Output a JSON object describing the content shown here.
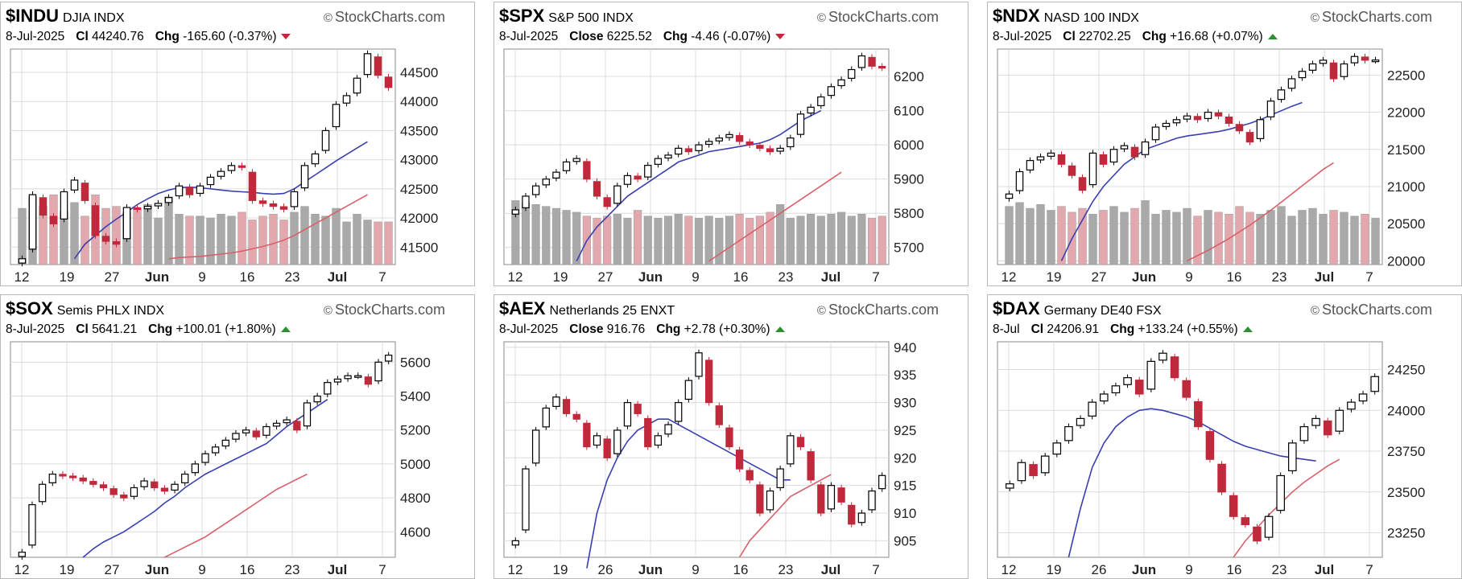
{
  "panels": [
    {
      "symbol": "$INDU",
      "name": "DJIA",
      "exchange": "INDX",
      "watermark": "StockCharts.com",
      "date": "8-Jul-2025",
      "close_label": "Cl",
      "close": "44240.76",
      "chg_label": "Chg",
      "chg": "-165.60 (-0.37%)",
      "direction": "down"
    },
    {
      "symbol": "$SPX",
      "name": "S&P 500",
      "exchange": "INDX",
      "watermark": "StockCharts.com",
      "date": "8-Jul-2025",
      "close_label": "Close",
      "close": "6225.52",
      "chg_label": "Chg",
      "chg": "-4.46 (-0.07%)",
      "direction": "down"
    },
    {
      "symbol": "$NDX",
      "name": "NASD 100",
      "exchange": "INDX",
      "watermark": "StockCharts.com",
      "date": "8-Jul-2025",
      "close_label": "Cl",
      "close": "22702.25",
      "chg_label": "Chg",
      "chg": "+16.68 (+0.07%)",
      "direction": "up"
    },
    {
      "symbol": "$SOX",
      "name": "Semis PHLX",
      "exchange": "INDX",
      "watermark": "StockCharts.com",
      "date": "8-Jul-2025",
      "close_label": "Cl",
      "close": "5641.21",
      "chg_label": "Chg",
      "chg": "+100.01 (+1.80%)",
      "direction": "up"
    },
    {
      "symbol": "$AEX",
      "name": "Netherlands 25",
      "exchange": "ENXT",
      "watermark": "StockCharts.com",
      "date": "8-Jul-2025",
      "close_label": "Close",
      "close": "916.76",
      "chg_label": "Chg",
      "chg": "+2.78 (+0.30%)",
      "direction": "up"
    },
    {
      "symbol": "$DAX",
      "name": "Germany DE40",
      "exchange": "FSX",
      "watermark": "StockCharts.com",
      "date": "8-Jul",
      "close_label": "Cl",
      "close": "24206.91",
      "chg_label": "Chg",
      "chg": "+133.24 (+0.55%)",
      "direction": "up"
    }
  ],
  "chart_data": [
    {
      "type": "candlestick",
      "series": "$INDU",
      "ylim": [
        41200,
        44900
      ],
      "yticks": [
        41500,
        42000,
        42500,
        43000,
        43500,
        44000,
        44500
      ],
      "xticks": [
        "12",
        "19",
        "27",
        "Jun",
        "9",
        "16",
        "23",
        "Jul",
        "7"
      ],
      "closes": [
        41300,
        42400,
        42050,
        41900,
        42450,
        42650,
        42300,
        41700,
        41600,
        41550,
        42180,
        42150,
        42200,
        42250,
        42350,
        42550,
        42400,
        42550,
        42700,
        42800,
        42900,
        42870,
        42300,
        42250,
        42200,
        42150,
        42450,
        42900,
        43100,
        43500,
        43950,
        44100,
        44400,
        44820,
        44450,
        44240
      ],
      "ma_fast": [
        null,
        null,
        null,
        null,
        null,
        41300,
        41550,
        41700,
        41850,
        41980,
        42100,
        42230,
        42330,
        42420,
        42480,
        42520,
        42530,
        42520,
        42500,
        42480,
        42460,
        42450,
        42440,
        42420,
        42410,
        42420,
        42500,
        42620,
        42740,
        42860,
        42980,
        43090,
        43200,
        43310,
        null,
        null
      ],
      "ma_slow": [
        null,
        null,
        null,
        null,
        null,
        null,
        null,
        null,
        null,
        null,
        null,
        null,
        null,
        null,
        41300,
        41320,
        41330,
        41340,
        41360,
        41380,
        41400,
        41430,
        41470,
        41510,
        41560,
        41620,
        41700,
        41800,
        41900,
        42000,
        42100,
        42200,
        42300,
        42400,
        null,
        null
      ],
      "volume": [
        58,
        70,
        60,
        72,
        55,
        64,
        50,
        72,
        58,
        60,
        54,
        58,
        62,
        48,
        70,
        52,
        50,
        50,
        48,
        52,
        50,
        54,
        46,
        50,
        52,
        46,
        54,
        60,
        52,
        50,
        58,
        44,
        52,
        46,
        44,
        44
      ]
    },
    {
      "type": "candlestick",
      "series": "$SPX",
      "ylim": [
        5650,
        6280
      ],
      "yticks": [
        5700,
        5800,
        5900,
        6000,
        6100,
        6200
      ],
      "xticks": [
        "12",
        "19",
        "27",
        "Jun",
        "9",
        "16",
        "23",
        "Jul",
        "7"
      ],
      "closes": [
        5810,
        5850,
        5880,
        5900,
        5920,
        5950,
        5960,
        5900,
        5850,
        5820,
        5880,
        5910,
        5900,
        5940,
        5960,
        5970,
        5990,
        5980,
        6000,
        6010,
        6020,
        6030,
        6010,
        6000,
        5990,
        5980,
        5990,
        6020,
        6090,
        6110,
        6140,
        6170,
        6190,
        6220,
        6260,
        6230,
        6225
      ],
      "ma_fast": [
        null,
        null,
        null,
        null,
        null,
        null,
        5660,
        5720,
        5760,
        5790,
        5820,
        5850,
        5870,
        5890,
        5910,
        5930,
        5950,
        5960,
        5970,
        5980,
        5985,
        5990,
        5995,
        6000,
        6005,
        6015,
        6030,
        6050,
        6070,
        6085,
        6100,
        null,
        null,
        null,
        null,
        null,
        null
      ],
      "ma_slow": [
        null,
        null,
        null,
        null,
        null,
        null,
        null,
        null,
        null,
        null,
        null,
        null,
        null,
        null,
        null,
        null,
        null,
        null,
        null,
        5660,
        5680,
        5700,
        5720,
        5740,
        5760,
        5780,
        5800,
        5820,
        5840,
        5860,
        5880,
        5900,
        5920,
        null,
        null,
        null,
        null
      ],
      "volume": [
        66,
        64,
        62,
        60,
        58,
        56,
        54,
        50,
        48,
        50,
        52,
        48,
        56,
        50,
        48,
        50,
        52,
        50,
        48,
        50,
        48,
        50,
        52,
        48,
        50,
        54,
        62,
        48,
        50,
        52,
        50,
        52,
        54,
        50,
        52,
        48,
        50
      ]
    },
    {
      "type": "candlestick",
      "series": "$NDX",
      "ylim": [
        19950,
        22850
      ],
      "yticks": [
        20000,
        20500,
        21000,
        21500,
        22000,
        22500
      ],
      "xticks": [
        "12",
        "19",
        "27",
        "Jun",
        "9",
        "16",
        "23",
        "Jul",
        "7"
      ],
      "closes": [
        20900,
        21200,
        21350,
        21400,
        21450,
        21300,
        21150,
        20950,
        21450,
        21300,
        21500,
        21550,
        21400,
        21600,
        21800,
        21850,
        21900,
        21950,
        21900,
        22000,
        21950,
        21850,
        21750,
        21600,
        21900,
        22150,
        22300,
        22450,
        22550,
        22650,
        22700,
        22450,
        22650,
        22750,
        22700,
        22702
      ],
      "ma_fast": [
        null,
        null,
        null,
        null,
        null,
        20000,
        20300,
        20550,
        20800,
        21000,
        21150,
        21300,
        21400,
        21500,
        21550,
        21600,
        21650,
        21680,
        21700,
        21720,
        21740,
        21770,
        21810,
        21850,
        21900,
        21960,
        22020,
        22080,
        22130,
        null,
        null,
        null,
        null,
        null,
        null,
        null
      ],
      "ma_slow": [
        null,
        null,
        null,
        null,
        null,
        null,
        null,
        null,
        null,
        null,
        null,
        null,
        null,
        null,
        null,
        null,
        null,
        20000,
        20070,
        20140,
        20220,
        20300,
        20390,
        20480,
        20580,
        20680,
        20790,
        20900,
        21010,
        21120,
        21230,
        21320,
        null,
        null,
        null,
        null
      ],
      "volume": [
        60,
        64,
        58,
        62,
        56,
        60,
        54,
        58,
        52,
        56,
        60,
        54,
        58,
        66,
        52,
        56,
        54,
        58,
        50,
        56,
        54,
        52,
        60,
        54,
        52,
        56,
        60,
        50,
        56,
        58,
        52,
        56,
        54,
        50,
        52,
        48
      ]
    },
    {
      "type": "candlestick",
      "series": "$SOX",
      "ylim": [
        4450,
        5720
      ],
      "yticks": [
        4600,
        4800,
        5000,
        5200,
        5400,
        5600
      ],
      "xticks": [
        "12",
        "19",
        "27",
        "Jun",
        "9",
        "16",
        "23",
        "Jul",
        "7"
      ],
      "closes": [
        4480,
        4760,
        4880,
        4940,
        4930,
        4920,
        4900,
        4880,
        4860,
        4820,
        4800,
        4860,
        4900,
        4860,
        4840,
        4880,
        4940,
        5000,
        5060,
        5100,
        5140,
        5180,
        5200,
        5160,
        5220,
        5240,
        5260,
        5200,
        5360,
        5400,
        5480,
        5500,
        5520,
        5520,
        5470,
        5600,
        5641
      ],
      "ma_fast": [
        null,
        null,
        null,
        null,
        null,
        null,
        4450,
        4500,
        4540,
        4570,
        4600,
        4640,
        4680,
        4720,
        4770,
        4810,
        4860,
        4900,
        4940,
        4970,
        5000,
        5030,
        5060,
        5090,
        5120,
        5170,
        5220,
        5260,
        5300,
        5340,
        5380,
        null,
        null,
        null,
        null,
        null,
        null
      ],
      "ma_slow": [
        null,
        null,
        null,
        null,
        null,
        null,
        null,
        null,
        null,
        null,
        null,
        null,
        null,
        null,
        4450,
        4480,
        4510,
        4540,
        4570,
        4610,
        4650,
        4690,
        4730,
        4770,
        4810,
        4850,
        4880,
        4910,
        4940,
        null,
        null,
        null,
        null,
        null,
        null,
        null,
        null
      ]
    },
    {
      "type": "candlestick",
      "series": "$AEX",
      "ylim": [
        902,
        941
      ],
      "yticks": [
        905,
        910,
        915,
        920,
        925,
        930,
        935,
        940
      ],
      "xticks": [
        "12",
        "19",
        "26",
        "Jun",
        "9",
        "16",
        "23",
        "Jul",
        "7"
      ],
      "closes": [
        905,
        918,
        925,
        929,
        931,
        928,
        927,
        922,
        924,
        920,
        925,
        930,
        928,
        922,
        924,
        926,
        930,
        934,
        939,
        930,
        926,
        922,
        918,
        916,
        910,
        914,
        918,
        924,
        922,
        916,
        910,
        915,
        912,
        908,
        910,
        914,
        916.8
      ],
      "ma_fast": [
        null,
        null,
        null,
        null,
        null,
        null,
        null,
        900,
        910,
        916,
        920,
        923,
        925,
        926,
        927,
        927,
        926,
        925,
        924,
        923,
        922,
        921,
        920,
        919,
        918,
        917,
        916,
        916,
        null,
        null,
        null,
        null,
        null,
        null,
        null,
        null,
        null
      ],
      "ma_slow": [
        null,
        null,
        null,
        null,
        null,
        null,
        null,
        null,
        null,
        null,
        null,
        null,
        null,
        null,
        null,
        null,
        null,
        null,
        null,
        null,
        null,
        null,
        902,
        905,
        907,
        909,
        911,
        913,
        914,
        915,
        916,
        917,
        null,
        null,
        null,
        null,
        null
      ]
    },
    {
      "type": "candlestick",
      "series": "$DAX",
      "ylim": [
        23100,
        24420
      ],
      "yticks": [
        23250,
        23500,
        23750,
        24000,
        24250
      ],
      "xticks": [
        "12",
        "19",
        "26",
        "Jun",
        "9",
        "16",
        "23",
        "Jul",
        "7"
      ],
      "closes": [
        23550,
        23680,
        23600,
        23720,
        23800,
        23900,
        23950,
        24050,
        24100,
        24150,
        24200,
        24100,
        24300,
        24350,
        24200,
        24080,
        23900,
        23700,
        23500,
        23350,
        23300,
        23200,
        23350,
        23600,
        23800,
        23900,
        23950,
        23850,
        24000,
        24050,
        24100,
        24206.9
      ],
      "ma_fast": [
        null,
        null,
        null,
        null,
        null,
        23100,
        23400,
        23650,
        23800,
        23900,
        23960,
        24000,
        24010,
        24000,
        23980,
        23960,
        23930,
        23890,
        23850,
        23810,
        23780,
        23760,
        23740,
        23720,
        23710,
        23700,
        23690,
        null,
        null,
        null,
        null,
        null
      ],
      "ma_slow": [
        null,
        null,
        null,
        null,
        null,
        null,
        null,
        null,
        null,
        null,
        null,
        null,
        null,
        null,
        null,
        null,
        null,
        null,
        null,
        23100,
        23200,
        23280,
        23360,
        23430,
        23500,
        23560,
        23610,
        23660,
        23700,
        null,
        null,
        null
      ]
    }
  ],
  "colors": {
    "up": "#ffffff",
    "down": "#c0283c",
    "solid_black": "#000000",
    "ma_fast": "#3a3fb0",
    "ma_slow": "#d9606a",
    "volume_gray": "#a9a9a9",
    "volume_red": "#e3a8ad",
    "grid": "#dcdcdc",
    "axis_frame": "#888888"
  }
}
